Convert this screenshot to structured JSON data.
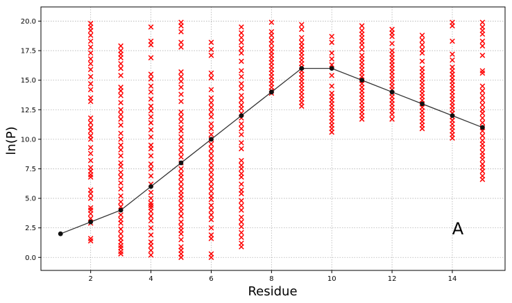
{
  "chart_data": {
    "type": "scatter",
    "title": "",
    "xlabel": "Residue",
    "ylabel": "ln(P)",
    "panel_label": "A",
    "xlim": [
      0.35,
      15.75
    ],
    "ylim": [
      -1.1,
      21.2
    ],
    "xticks": [
      2,
      4,
      6,
      8,
      10,
      12,
      14
    ],
    "yticks": [
      0.0,
      2.5,
      5.0,
      7.5,
      10.0,
      12.5,
      15.0,
      17.5,
      20.0
    ],
    "ytick_labels": [
      "0.0",
      "2.5",
      "5.0",
      "7.5",
      "10.0",
      "12.5",
      "15.0",
      "17.5",
      "20.0"
    ],
    "grid": true,
    "colors": {
      "scatter": "#ff0000",
      "line": "#333333",
      "marker": "#111111"
    },
    "series": [
      {
        "kind": "scatter-x-markers",
        "points": [
          {
            "x": 2,
            "y": [
              1.4,
              1.6,
              2.9,
              3.3,
              3.7,
              4.0,
              4.2,
              5.0,
              5.4,
              5.7,
              6.8,
              7.0,
              7.3,
              7.6,
              8.2,
              8.8,
              9.3,
              10.0,
              10.3,
              10.7,
              11.0,
              11.4,
              11.8,
              13.2,
              13.5,
              14.2,
              14.7,
              15.3,
              15.9,
              16.4,
              16.8,
              17.3,
              17.8,
              18.3,
              18.8,
              19.2,
              19.5,
              19.8
            ]
          },
          {
            "x": 3,
            "y": [
              0.3,
              0.5,
              0.8,
              1.0,
              1.3,
              1.6,
              2.0,
              2.4,
              2.9,
              3.2,
              3.6,
              4.3,
              4.7,
              5.2,
              5.8,
              6.3,
              6.8,
              7.2,
              7.7,
              8.0,
              8.6,
              9.1,
              9.5,
              10.0,
              10.5,
              11.2,
              11.7,
              12.1,
              12.5,
              13.1,
              13.7,
              14.1,
              14.4,
              15.4,
              16.0,
              16.4,
              16.9,
              17.2,
              17.5,
              17.9
            ]
          },
          {
            "x": 4,
            "y": [
              0.2,
              0.6,
              1.0,
              1.3,
              1.9,
              2.5,
              3.1,
              3.5,
              3.9,
              4.2,
              4.4,
              4.6,
              5.0,
              5.5,
              6.2,
              6.9,
              7.5,
              7.9,
              8.6,
              9.2,
              9.5,
              10.2,
              10.8,
              11.4,
              11.9,
              12.4,
              12.8,
              13.4,
              14.0,
              14.5,
              15.1,
              15.5,
              16.9,
              18.0,
              18.3,
              19.5
            ]
          },
          {
            "x": 5,
            "y": [
              0.0,
              0.3,
              0.6,
              0.9,
              1.5,
              2.0,
              2.3,
              2.6,
              3.0,
              3.5,
              3.9,
              4.2,
              4.6,
              5.0,
              5.3,
              5.6,
              6.0,
              6.4,
              6.8,
              7.1,
              7.5,
              8.0,
              8.5,
              8.9,
              9.3,
              9.8,
              10.2,
              10.7,
              11.0,
              11.5,
              11.9,
              12.3,
              13.2,
              13.8,
              14.4,
              14.9,
              15.3,
              15.7,
              17.8,
              18.2,
              19.1,
              19.6,
              19.9
            ]
          },
          {
            "x": 6,
            "y": [
              0.0,
              0.3,
              1.6,
              1.9,
              2.5,
              3.2,
              3.6,
              4.0,
              4.4,
              4.9,
              5.2,
              5.6,
              6.0,
              6.4,
              6.8,
              7.2,
              7.6,
              8.0,
              8.4,
              8.8,
              9.2,
              9.6,
              10.0,
              10.4,
              10.9,
              11.3,
              11.9,
              12.3,
              12.7,
              13.1,
              13.5,
              14.2,
              15.2,
              15.6,
              17.1,
              17.6,
              18.2
            ]
          },
          {
            "x": 7,
            "y": [
              0.9,
              1.2,
              1.7,
              2.1,
              2.6,
              3.0,
              3.4,
              4.0,
              4.4,
              4.8,
              5.4,
              5.7,
              6.2,
              6.8,
              7.1,
              7.5,
              7.8,
              8.2,
              9.2,
              9.7,
              10.4,
              10.9,
              11.3,
              11.8,
              12.2,
              12.6,
              12.9,
              13.3,
              13.7,
              14.3,
              14.7,
              15.3,
              15.8,
              16.6,
              17.3,
              17.7,
              18.2,
              18.6,
              19.0,
              19.5
            ]
          },
          {
            "x": 8,
            "y": [
              13.9,
              14.1,
              14.4,
              14.7,
              15.0,
              15.3,
              15.6,
              15.9,
              16.2,
              16.5,
              16.8,
              17.1,
              17.4,
              17.7,
              18.1,
              18.4,
              18.8,
              19.1,
              19.9
            ]
          },
          {
            "x": 9,
            "y": [
              12.8,
              13.1,
              13.4,
              13.7,
              14.0,
              14.3,
              14.6,
              14.9,
              15.2,
              15.5,
              15.8,
              16.1,
              16.4,
              16.7,
              17.0,
              17.3,
              17.6,
              17.9,
              18.2,
              18.6,
              19.3,
              19.7
            ]
          },
          {
            "x": 10,
            "y": [
              10.6,
              10.9,
              11.2,
              11.5,
              11.8,
              12.1,
              12.4,
              12.7,
              13.0,
              13.3,
              13.6,
              13.9,
              14.5,
              15.4,
              16.3,
              16.8,
              17.3,
              18.2,
              18.7
            ]
          },
          {
            "x": 11,
            "y": [
              11.7,
              12.0,
              12.3,
              12.6,
              12.9,
              13.2,
              13.5,
              13.8,
              14.1,
              14.4,
              14.7,
              15.0,
              15.3,
              15.6,
              15.9,
              16.2,
              16.5,
              16.8,
              17.1,
              17.6,
              18.0,
              18.3,
              18.6,
              18.9,
              19.2,
              19.6
            ]
          },
          {
            "x": 12,
            "y": [
              11.7,
              12.1,
              12.4,
              12.7,
              13.0,
              13.3,
              13.6,
              13.9,
              14.2,
              14.5,
              14.8,
              15.1,
              15.4,
              15.7,
              16.0,
              16.3,
              16.6,
              16.9,
              17.2,
              17.5,
              18.1,
              18.7,
              19.0,
              19.3
            ]
          },
          {
            "x": 13,
            "y": [
              10.9,
              11.2,
              11.5,
              11.8,
              12.1,
              12.4,
              12.7,
              13.0,
              13.3,
              13.6,
              13.9,
              14.2,
              14.5,
              14.8,
              15.1,
              15.4,
              15.7,
              16.0,
              16.6,
              17.3,
              17.6,
              18.0,
              18.4,
              18.8
            ]
          },
          {
            "x": 14,
            "y": [
              10.1,
              10.4,
              10.7,
              11.0,
              11.3,
              11.6,
              11.9,
              12.2,
              12.5,
              12.8,
              13.1,
              13.4,
              13.7,
              14.0,
              14.3,
              14.6,
              14.9,
              15.2,
              15.5,
              15.8,
              16.1,
              16.7,
              17.2,
              18.3,
              19.6,
              19.9
            ]
          },
          {
            "x": 15,
            "y": [
              6.6,
              6.9,
              7.3,
              7.6,
              7.9,
              8.3,
              8.6,
              8.9,
              9.3,
              9.6,
              9.9,
              10.3,
              10.7,
              11.0,
              11.4,
              11.8,
              12.2,
              12.5,
              12.9,
              13.3,
              13.7,
              14.1,
              14.5,
              15.6,
              15.8,
              17.1,
              17.9,
              18.3,
              18.9,
              19.2,
              19.5,
              19.9
            ]
          }
        ]
      },
      {
        "kind": "line-with-markers",
        "x": [
          1,
          2,
          3,
          4,
          5,
          6,
          7,
          8,
          9,
          10,
          11,
          12,
          13,
          14,
          15
        ],
        "y": [
          2,
          3,
          4,
          6,
          8,
          10,
          12,
          14,
          16,
          16,
          15,
          14,
          13,
          12,
          11
        ]
      }
    ]
  }
}
